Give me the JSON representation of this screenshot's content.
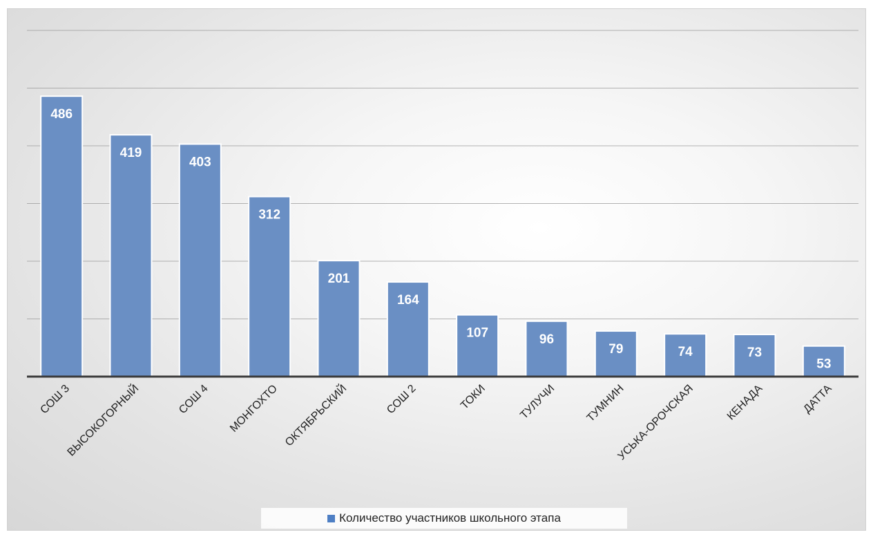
{
  "chart_data": {
    "type": "bar",
    "categories": [
      "СОШ 3",
      "ВЫСОКОГОРНЫЙ",
      "СОШ 4",
      "МОНГОХТО",
      "ОКТЯБРЬСКИЙ",
      "СОШ 2",
      "ТОКИ",
      "ТУЛУЧИ",
      "ТУМНИН",
      "УСЬКА-ОРОЧСКАЯ",
      "КЕНАДА",
      "ДАТТА"
    ],
    "series": [
      {
        "name": "Количество участников школьного этапа",
        "values": [
          486,
          419,
          403,
          312,
          201,
          164,
          107,
          96,
          79,
          74,
          73,
          53
        ],
        "color": "#6a8fc4"
      }
    ],
    "ylim": [
      0,
      600
    ],
    "grid": true,
    "legend": "bottom",
    "data_labels": true
  }
}
